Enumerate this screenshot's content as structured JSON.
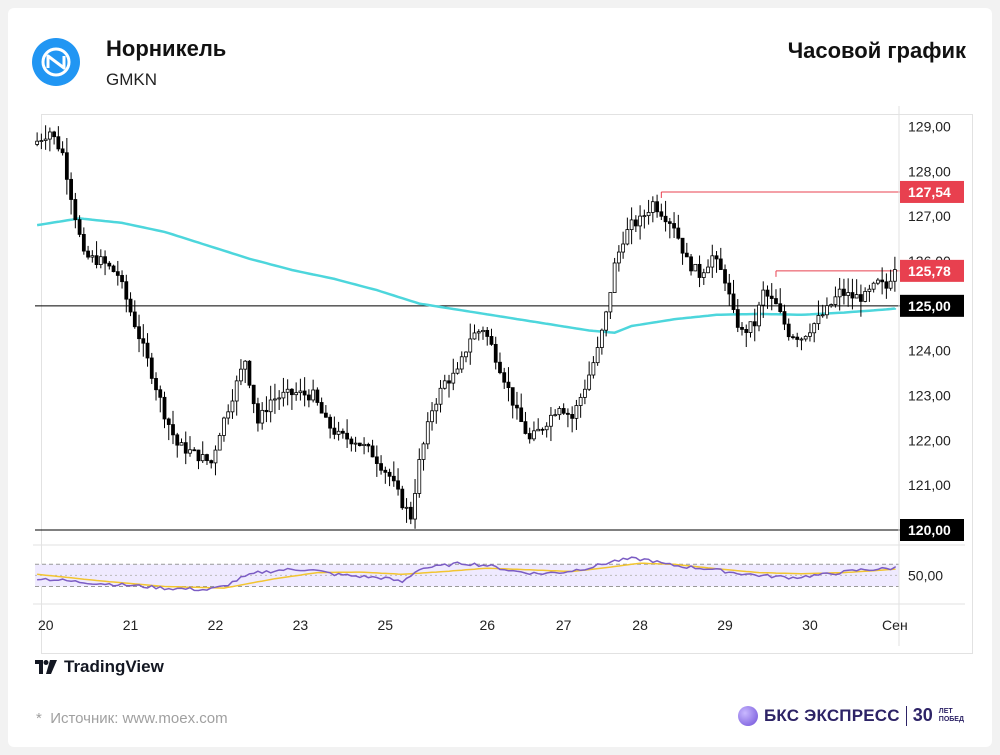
{
  "header": {
    "company": "Норникель",
    "ticker": "GMKN",
    "chart_type_label": "Часовой график"
  },
  "footer": {
    "tradingview_label": "TradingView",
    "source": "Источник: www.moex.com",
    "source_star": "*",
    "brand": "БКС ЭКСПРЕСС",
    "anniversary_number": "30",
    "anniversary_word1": "ЛЕТ",
    "anniversary_word2": "ПОБЕД"
  },
  "colors": {
    "brand_blue": "#2196f3",
    "up_candle": "#ffffff",
    "down_candle": "#000000",
    "ma_line": "#4dd6dc",
    "level_red": "#e8404f",
    "level_black": "#000000",
    "rsi_line": "#7b5cc4",
    "rsi_signal": "#f2c531",
    "rsi_band": "#efeaff"
  },
  "chart_data": {
    "type": "candlestick",
    "price_axis": {
      "ticks": [
        "129,00",
        "128,00",
        "127,00",
        "126,00",
        "125,00",
        "124,00",
        "123,00",
        "122,00",
        "121,00",
        "120,00"
      ],
      "ylim": [
        119.5,
        129.5
      ]
    },
    "time_axis": {
      "labels": [
        "20",
        "21",
        "22",
        "23",
        "25",
        "26",
        "27",
        "28",
        "29",
        "30",
        "Сен"
      ]
    },
    "price_labels": [
      {
        "text": "127,54",
        "value": 127.54,
        "style": "red"
      },
      {
        "text": "125,78",
        "value": 125.78,
        "style": "red"
      },
      {
        "text": "125,00",
        "value": 125.0,
        "style": "black"
      },
      {
        "text": "120,00",
        "value": 120.0,
        "style": "black"
      }
    ],
    "horizontal_levels": [
      {
        "value": 125.0,
        "color": "black",
        "from_session": 0
      },
      {
        "value": 120.0,
        "color": "black",
        "from_session": 0
      },
      {
        "value": 127.54,
        "color": "red",
        "from_candle": 147
      },
      {
        "value": 125.78,
        "color": "red",
        "from_candle": 174
      }
    ],
    "sessions_candle_start": [
      0,
      22,
      42,
      62,
      82,
      106,
      124,
      142,
      162,
      182,
      202
    ],
    "candle_count": 203,
    "ma_keypoints": [
      [
        0,
        126.8
      ],
      [
        10,
        126.95
      ],
      [
        20,
        126.85
      ],
      [
        30,
        126.65
      ],
      [
        40,
        126.35
      ],
      [
        50,
        126.05
      ],
      [
        60,
        125.8
      ],
      [
        70,
        125.6
      ],
      [
        80,
        125.35
      ],
      [
        90,
        125.05
      ],
      [
        100,
        124.9
      ],
      [
        110,
        124.75
      ],
      [
        120,
        124.6
      ],
      [
        130,
        124.45
      ],
      [
        136,
        124.4
      ],
      [
        140,
        124.55
      ],
      [
        150,
        124.7
      ],
      [
        160,
        124.8
      ],
      [
        170,
        124.82
      ],
      [
        180,
        124.8
      ],
      [
        190,
        124.85
      ],
      [
        200,
        124.92
      ],
      [
        203,
        124.95
      ]
    ],
    "price_keypoints": [
      [
        0,
        128.6
      ],
      [
        4,
        128.9
      ],
      [
        7,
        128.4
      ],
      [
        10,
        127.0
      ],
      [
        12,
        126.1
      ],
      [
        16,
        126.0
      ],
      [
        20,
        125.7
      ],
      [
        24,
        124.6
      ],
      [
        28,
        123.5
      ],
      [
        31,
        122.6
      ],
      [
        34,
        121.9
      ],
      [
        38,
        121.7
      ],
      [
        42,
        121.5
      ],
      [
        44,
        122.2
      ],
      [
        47,
        123.0
      ],
      [
        50,
        123.8
      ],
      [
        53,
        122.4
      ],
      [
        56,
        122.9
      ],
      [
        59,
        123.0
      ],
      [
        62,
        123.05
      ],
      [
        66,
        123.0
      ],
      [
        69,
        122.4
      ],
      [
        72,
        122.1
      ],
      [
        76,
        122.0
      ],
      [
        80,
        121.7
      ],
      [
        84,
        121.2
      ],
      [
        87,
        120.6
      ],
      [
        89,
        120.3
      ],
      [
        91,
        121.5
      ],
      [
        94,
        122.7
      ],
      [
        97,
        123.3
      ],
      [
        100,
        123.5
      ],
      [
        103,
        124.3
      ],
      [
        106,
        124.5
      ],
      [
        108,
        124.1
      ],
      [
        111,
        123.4
      ],
      [
        114,
        122.6
      ],
      [
        117,
        122.0
      ],
      [
        120,
        122.3
      ],
      [
        124,
        122.8
      ],
      [
        127,
        122.5
      ],
      [
        130,
        123.2
      ],
      [
        133,
        124.0
      ],
      [
        135,
        124.8
      ],
      [
        137,
        125.9
      ],
      [
        139,
        126.5
      ],
      [
        141,
        126.8
      ],
      [
        143,
        126.9
      ],
      [
        146,
        127.3
      ],
      [
        148,
        127.1
      ],
      [
        151,
        126.8
      ],
      [
        154,
        126.0
      ],
      [
        157,
        125.7
      ],
      [
        160,
        126.1
      ],
      [
        163,
        125.6
      ],
      [
        165,
        124.8
      ],
      [
        167,
        124.4
      ],
      [
        170,
        124.6
      ],
      [
        172,
        125.3
      ],
      [
        175,
        125.0
      ],
      [
        178,
        124.4
      ],
      [
        181,
        124.3
      ],
      [
        184,
        124.6
      ],
      [
        187,
        124.9
      ],
      [
        190,
        125.3
      ],
      [
        193,
        125.2
      ],
      [
        196,
        125.2
      ],
      [
        199,
        125.5
      ],
      [
        201,
        125.4
      ],
      [
        203,
        125.9
      ]
    ],
    "rsi": {
      "label": "50,00",
      "upper_band": 70,
      "lower_band": 30,
      "keypoints": [
        [
          0,
          45
        ],
        [
          10,
          38
        ],
        [
          20,
          33
        ],
        [
          30,
          27
        ],
        [
          40,
          24
        ],
        [
          44,
          30
        ],
        [
          48,
          45
        ],
        [
          52,
          55
        ],
        [
          58,
          60
        ],
        [
          64,
          61
        ],
        [
          70,
          52
        ],
        [
          76,
          48
        ],
        [
          82,
          45
        ],
        [
          86,
          38
        ],
        [
          90,
          62
        ],
        [
          100,
          72
        ],
        [
          106,
          68
        ],
        [
          112,
          58
        ],
        [
          118,
          53
        ],
        [
          124,
          56
        ],
        [
          130,
          64
        ],
        [
          136,
          76
        ],
        [
          140,
          80
        ],
        [
          144,
          78
        ],
        [
          148,
          70
        ],
        [
          152,
          66
        ],
        [
          158,
          62
        ],
        [
          164,
          55
        ],
        [
          170,
          50
        ],
        [
          178,
          46
        ],
        [
          186,
          52
        ],
        [
          194,
          60
        ],
        [
          200,
          62
        ],
        [
          203,
          64
        ]
      ],
      "signal_keypoints": [
        [
          0,
          52
        ],
        [
          15,
          40
        ],
        [
          30,
          30
        ],
        [
          44,
          27
        ],
        [
          56,
          44
        ],
        [
          66,
          55
        ],
        [
          76,
          56
        ],
        [
          86,
          52
        ],
        [
          96,
          57
        ],
        [
          106,
          63
        ],
        [
          116,
          60
        ],
        [
          126,
          57
        ],
        [
          134,
          64
        ],
        [
          142,
          72
        ],
        [
          150,
          70
        ],
        [
          160,
          62
        ],
        [
          170,
          55
        ],
        [
          180,
          53
        ],
        [
          190,
          55
        ],
        [
          200,
          60
        ],
        [
          203,
          62
        ]
      ]
    }
  }
}
